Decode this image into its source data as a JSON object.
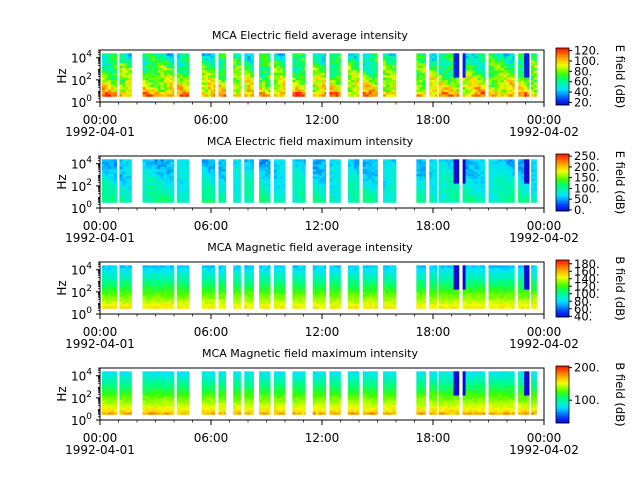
{
  "chart_data": [
    {
      "type": "heatmap",
      "title": "MCA  Electric field average intensity",
      "ylabel": "Hz",
      "colorbar_label": "E field (dB)",
      "colorbar_range": [
        15,
        125
      ],
      "colorbar_ticks": [
        "20.",
        "40.",
        "60.",
        "80.",
        "100.",
        "120."
      ],
      "colorbar_tick_values": [
        20,
        40,
        60,
        80,
        100,
        120
      ],
      "y_ticks": [
        "10",
        "10",
        "10"
      ],
      "y_tick_exponents": [
        "0",
        "2",
        "4"
      ],
      "y_tick_values": [
        0,
        2,
        4
      ],
      "ylim_log10": [
        0,
        4.7
      ],
      "x_range_hours": [
        0,
        24
      ],
      "x_tick_hours": [
        0,
        6,
        12,
        18,
        24
      ],
      "x_tick_labels": [
        "00:00",
        "06:00",
        "12:00",
        "18:00",
        "00:00"
      ],
      "x_date_labels": [
        "1992-04-01",
        "1992-04-02"
      ],
      "data_extent_log10": [
        0.5,
        4.4
      ],
      "profile": "eavg"
    },
    {
      "type": "heatmap",
      "title": "MCA  Electric field maximum intensity",
      "ylabel": "Hz",
      "colorbar_label": "E field (dB)",
      "colorbar_range": [
        -5,
        260
      ],
      "colorbar_ticks": [
        "0.",
        "50.",
        "100.",
        "150.",
        "200.",
        "250."
      ],
      "colorbar_tick_values": [
        0,
        50,
        100,
        150,
        200,
        250
      ],
      "y_ticks": [
        "10",
        "10",
        "10"
      ],
      "y_tick_exponents": [
        "0",
        "2",
        "4"
      ],
      "y_tick_values": [
        0,
        2,
        4
      ],
      "ylim_log10": [
        0,
        4.7
      ],
      "x_range_hours": [
        0,
        24
      ],
      "x_tick_hours": [
        0,
        6,
        12,
        18,
        24
      ],
      "x_tick_labels": [
        "00:00",
        "06:00",
        "12:00",
        "18:00",
        "00:00"
      ],
      "x_date_labels": [
        "1992-04-01",
        "1992-04-02"
      ],
      "data_extent_log10": [
        0.5,
        4.4
      ],
      "profile": "emax"
    },
    {
      "type": "heatmap",
      "title": "MCA  Magnetic field average intensity",
      "ylabel": "Hz",
      "colorbar_label": "B field (dB)",
      "colorbar_range": [
        38,
        190
      ],
      "colorbar_ticks": [
        "40.",
        "60.",
        "80.",
        "100.",
        "120.",
        "140.",
        "160.",
        "180."
      ],
      "colorbar_tick_values": [
        40,
        60,
        80,
        100,
        120,
        140,
        160,
        180
      ],
      "y_ticks": [
        "10",
        "10",
        "10"
      ],
      "y_tick_exponents": [
        "0",
        "2",
        "4"
      ],
      "y_tick_values": [
        0,
        2,
        4
      ],
      "ylim_log10": [
        0,
        4.7
      ],
      "x_range_hours": [
        0,
        24
      ],
      "x_tick_hours": [
        0,
        6,
        12,
        18,
        24
      ],
      "x_tick_labels": [
        "00:00",
        "06:00",
        "12:00",
        "18:00",
        "00:00"
      ],
      "x_date_labels": [
        "1992-04-01",
        "1992-04-02"
      ],
      "data_extent_log10": [
        0.5,
        4.4
      ],
      "profile": "bavg"
    },
    {
      "type": "heatmap",
      "title": "MCA  Magnetic field maximum intensity",
      "ylabel": "Hz",
      "colorbar_label": "B field (dB)",
      "colorbar_range": [
        30,
        205
      ],
      "colorbar_ticks": [
        "100.",
        "200."
      ],
      "colorbar_tick_values": [
        100,
        200
      ],
      "y_ticks": [
        "10",
        "10",
        "10"
      ],
      "y_tick_exponents": [
        "0",
        "2",
        "4"
      ],
      "y_tick_values": [
        0,
        2,
        4
      ],
      "ylim_log10": [
        0,
        4.7
      ],
      "x_range_hours": [
        0,
        24
      ],
      "x_tick_hours": [
        0,
        6,
        12,
        18,
        24
      ],
      "x_tick_labels": [
        "00:00",
        "06:00",
        "12:00",
        "18:00",
        "00:00"
      ],
      "x_date_labels": [
        "1992-04-01",
        "1992-04-02"
      ],
      "data_extent_log10": [
        0.5,
        4.4
      ],
      "profile": "bmax"
    }
  ],
  "data_segments_hours": [
    [
      0.1,
      0.9
    ],
    [
      1.05,
      1.7
    ],
    [
      2.3,
      4.0
    ],
    [
      4.15,
      4.8
    ],
    [
      5.5,
      6.2
    ],
    [
      6.4,
      6.8
    ],
    [
      7.2,
      7.6
    ],
    [
      7.8,
      8.3
    ],
    [
      8.6,
      9.2
    ],
    [
      9.4,
      10.0
    ],
    [
      10.4,
      11.1
    ],
    [
      11.5,
      12.2
    ],
    [
      12.4,
      13.0
    ],
    [
      13.4,
      14.0
    ],
    [
      14.2,
      15.0
    ],
    [
      15.3,
      16.0
    ],
    [
      17.1,
      17.6
    ],
    [
      17.8,
      18.2
    ],
    [
      18.3,
      19.4
    ],
    [
      19.6,
      20.8
    ],
    [
      21.0,
      22.4
    ],
    [
      22.6,
      23.2
    ],
    [
      23.3,
      23.6
    ]
  ],
  "spike_hours": [
    19.2,
    19.4,
    19.6,
    22.9,
    23.1
  ]
}
